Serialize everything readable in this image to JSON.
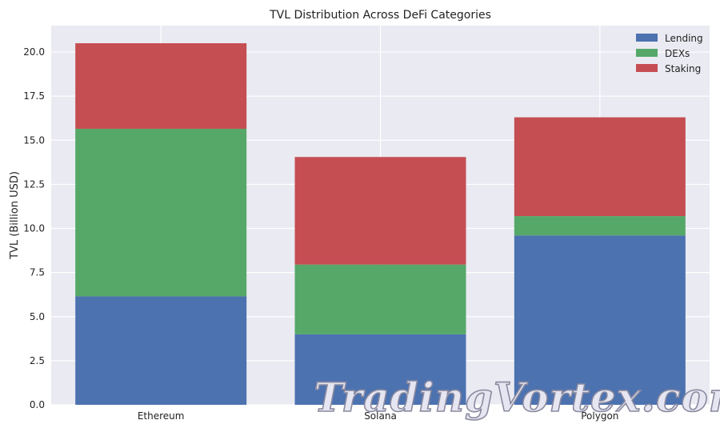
{
  "chart_data": {
    "type": "bar",
    "stacked": true,
    "title": "TVL Distribution Across DeFi Categories",
    "xlabel": "",
    "ylabel": "TVL (Billion USD)",
    "categories": [
      "Ethereum",
      "Solana",
      "Polygon"
    ],
    "series": [
      {
        "name": "Lending",
        "color": "#4c72b0",
        "values": [
          6.15,
          4.0,
          9.6
        ]
      },
      {
        "name": "DEXs",
        "color": "#55a868",
        "values": [
          9.5,
          3.95,
          1.1
        ]
      },
      {
        "name": "Staking",
        "color": "#c44e52",
        "values": [
          4.85,
          6.1,
          5.6
        ]
      }
    ],
    "ylim": [
      0,
      21.5
    ],
    "yticks": [
      0.0,
      2.5,
      5.0,
      7.5,
      10.0,
      12.5,
      15.0,
      17.5,
      20.0
    ],
    "ytick_labels": [
      "0.0",
      "2.5",
      "5.0",
      "7.5",
      "10.0",
      "12.5",
      "15.0",
      "17.5",
      "20.0"
    ],
    "grid": true,
    "legend": "top-right",
    "colors": {
      "plot_background": "#eaeaf2",
      "grid": "#ffffff"
    }
  },
  "watermark": {
    "text": "TradingVortex.com"
  }
}
